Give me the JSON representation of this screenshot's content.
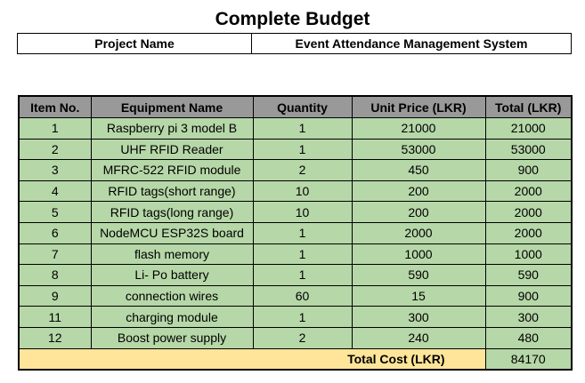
{
  "title": "Complete Budget",
  "project": {
    "label": "Project Name",
    "value": "Event Attendance Management System"
  },
  "budget": {
    "headers": [
      "Item No.",
      "Equipment Name",
      "Quantity",
      "Unit Price (LKR)",
      "Total (LKR)"
    ],
    "rows": [
      [
        "1",
        "Raspberry pi 3 model B",
        "1",
        "21000",
        "21000"
      ],
      [
        "2",
        "UHF RFID Reader",
        "1",
        "53000",
        "53000"
      ],
      [
        "3",
        "MFRC-522 RFID module",
        "2",
        "450",
        "900"
      ],
      [
        "4",
        "RFID tags(short range)",
        "10",
        "200",
        "2000"
      ],
      [
        "5",
        "RFID tags(long range)",
        "10",
        "200",
        "2000"
      ],
      [
        "6",
        "NodeMCU ESP32S board",
        "1",
        "2000",
        "2000"
      ],
      [
        "7",
        "flash memory",
        "1",
        "1000",
        "1000"
      ],
      [
        "8",
        "Li- Po battery",
        "1",
        "590",
        "590"
      ],
      [
        "9",
        "connection wires",
        "60",
        "15",
        "900"
      ],
      [
        "11",
        "charging module",
        "1",
        "300",
        "300"
      ],
      [
        "12",
        "Boost power supply",
        "2",
        "240",
        "480"
      ]
    ],
    "total_label": "Total Cost (LKR)",
    "total_value": "84170"
  }
}
